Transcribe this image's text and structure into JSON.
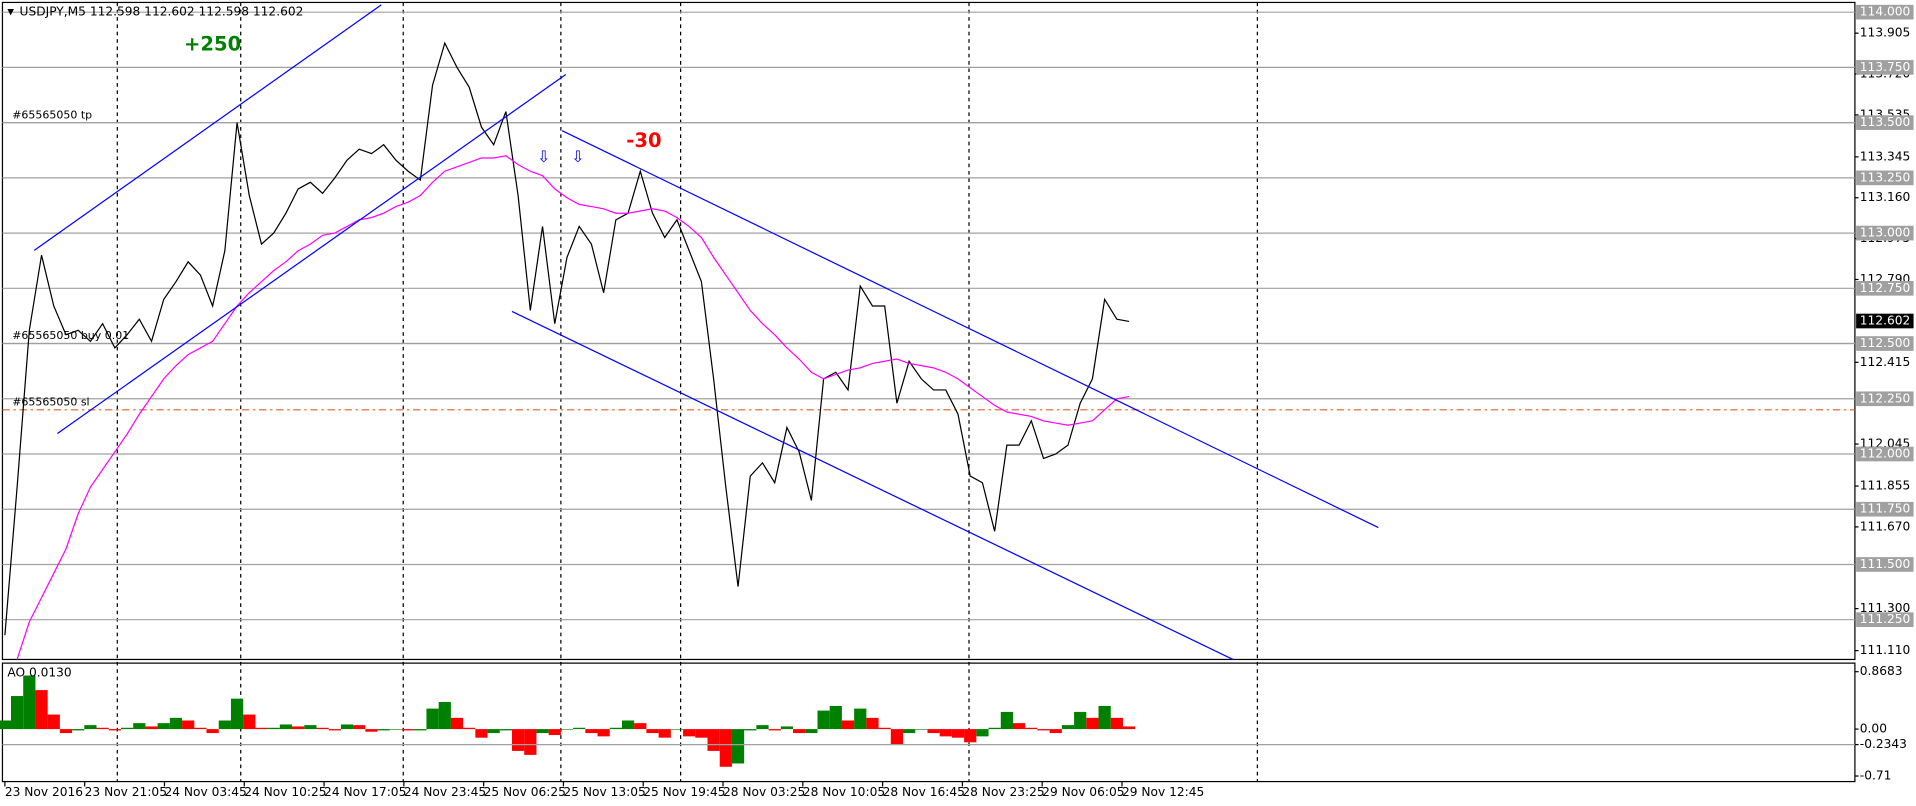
{
  "chart_data": [
    {
      "type": "line",
      "title": "USDJPY,M5  112.598 112.602 112.598 112.602",
      "x_labels": [
        "23 Nov 2016",
        "23 Nov 21:05",
        "24 Nov 03:45",
        "24 Nov 10:25",
        "24 Nov 17:05",
        "24 Nov 23:45",
        "25 Nov 06:25",
        "25 Nov 13:05",
        "25 Nov 19:45",
        "28 Nov 03:25",
        "28 Nov 10:05",
        "28 Nov 16:45",
        "28 Nov 23:25",
        "29 Nov 06:05",
        "29 Nov 12:45"
      ],
      "series": [
        {
          "color": "#000000",
          "values": [
            111.18,
            111.85,
            112.56,
            112.9,
            112.67,
            112.54,
            112.56,
            112.51,
            112.59,
            112.48,
            112.54,
            112.61,
            112.51,
            112.7,
            112.78,
            112.87,
            112.81,
            112.67,
            112.92,
            113.5,
            113.17,
            112.95,
            113.0,
            113.09,
            113.2,
            113.23,
            113.18,
            113.25,
            113.33,
            113.38,
            113.36,
            113.4,
            113.33,
            113.28,
            113.24,
            113.67,
            113.86,
            113.75,
            113.66,
            113.48,
            113.4,
            113.55,
            113.17,
            112.65,
            113.03,
            112.59,
            112.89,
            113.03,
            112.95,
            112.73,
            113.06,
            113.09,
            113.28,
            113.09,
            112.98,
            113.06,
            112.92,
            112.78,
            112.34,
            111.85,
            111.4,
            111.9,
            111.96,
            111.87,
            112.12,
            112.01,
            111.79,
            112.34,
            112.37,
            112.29,
            112.76,
            112.67,
            112.67,
            112.23,
            112.42,
            112.34,
            112.29,
            112.29,
            112.18,
            111.9,
            111.87,
            111.65,
            112.04,
            112.04,
            112.15,
            111.98,
            112.0,
            112.04,
            112.23,
            112.34,
            112.7,
            112.61,
            112.6
          ]
        },
        {
          "color": "#ff00ff",
          "values": [
            null,
            111.07,
            111.24,
            111.35,
            111.46,
            111.57,
            111.73,
            111.85,
            111.93,
            112.01,
            112.09,
            112.18,
            112.26,
            112.34,
            112.4,
            112.45,
            112.48,
            112.51,
            112.59,
            112.67,
            112.73,
            112.78,
            112.83,
            112.87,
            112.92,
            112.95,
            112.99,
            113.0,
            113.03,
            113.06,
            113.07,
            113.09,
            113.12,
            113.14,
            113.17,
            113.23,
            113.28,
            113.3,
            113.32,
            113.34,
            113.34,
            113.35,
            113.31,
            113.28,
            113.26,
            113.2,
            113.16,
            113.13,
            113.12,
            113.11,
            113.09,
            113.09,
            113.1,
            113.11,
            113.1,
            113.07,
            113.03,
            112.98,
            112.89,
            112.81,
            112.73,
            112.65,
            112.59,
            112.54,
            112.48,
            112.43,
            112.37,
            112.34,
            112.36,
            112.38,
            112.39,
            112.41,
            112.42,
            112.43,
            112.41,
            112.4,
            112.39,
            112.37,
            112.34,
            112.3,
            112.26,
            112.22,
            112.19,
            112.18,
            112.17,
            112.15,
            112.14,
            112.13,
            112.14,
            112.15,
            112.2,
            112.25,
            112.26
          ]
        }
      ],
      "ylim": [
        111.07,
        114.033
      ],
      "yticks": [
        113.905,
        {
          "value": 113.72,
          "label": "113.720"
        },
        113.535,
        113.345,
        {
          "value": 113.16,
          "label": "113.160"
        },
        112.975,
        {
          "value": 112.79,
          "label": "112.790"
        },
        112.415,
        112.045,
        111.855,
        {
          "value": 111.67,
          "label": "111.670"
        },
        {
          "value": 111.3,
          "label": "111.300"
        },
        {
          "value": 111.11,
          "label": "111.110"
        }
      ],
      "levels": [
        {
          "value": 114,
          "label": "114.000"
        },
        {
          "value": 113.75,
          "label": "113.750"
        },
        {
          "value": 113.5,
          "label": "113.500"
        },
        {
          "value": 113.25,
          "label": "113.250"
        },
        {
          "value": 113,
          "label": "113.000"
        },
        {
          "value": 112.75,
          "label": "112.750"
        },
        {
          "value": 112.5,
          "label": "112.500"
        },
        {
          "value": 112.25,
          "label": "112.250"
        },
        {
          "value": 112,
          "label": "112.000"
        },
        {
          "value": 111.75,
          "label": "111.750"
        },
        {
          "value": 111.5,
          "label": "111.500"
        },
        {
          "value": 111.25,
          "label": "111.250"
        }
      ],
      "current_price": 112.602,
      "orders": [
        {
          "value": 113.5,
          "label": "#65565050 tp"
        },
        {
          "value": 112.5,
          "label": "#65565050 buy 0.01"
        },
        {
          "value": 112.2,
          "label": "#65565050 sl"
        }
      ],
      "annotations": [
        "+250",
        "-30"
      ]
    },
    {
      "type": "bar",
      "title": "AO 0.0130",
      "up_color": "#008000",
      "down_color": "#ff0000",
      "values": [
        0.13,
        0.5,
        0.81,
        0.59,
        0.22,
        -0.06,
        -0.02,
        0.06,
        0.02,
        -0.02,
        0.02,
        0.09,
        0.04,
        0.09,
        0.17,
        0.13,
        0.02,
        -0.06,
        0.13,
        0.46,
        0.22,
        0.02,
        0.02,
        0.07,
        0.04,
        0.06,
        0.02,
        -0.02,
        0.07,
        0.06,
        -0.04,
        -0.02,
        0,
        -0.02,
        -0.02,
        0.31,
        0.41,
        0.17,
        0.02,
        -0.13,
        -0.06,
        -0.02,
        -0.33,
        -0.39,
        -0.06,
        -0.09,
        0,
        0.02,
        -0.06,
        -0.11,
        0.02,
        0.13,
        0.09,
        -0.06,
        -0.13,
        0,
        -0.11,
        -0.13,
        -0.33,
        -0.57,
        -0.52,
        -0.02,
        0.06,
        -0.02,
        0.04,
        -0.06,
        -0.06,
        0.28,
        0.35,
        0.13,
        0.31,
        0.17,
        0.02,
        -0.24,
        -0.06,
        0,
        -0.06,
        -0.11,
        -0.13,
        -0.2,
        -0.11,
        0.02,
        0.26,
        0.09,
        0.02,
        -0.02,
        -0.06,
        0.06,
        0.26,
        0.17,
        0.35,
        0.17,
        0.04
      ],
      "ylim": [
        -0.794,
        0.998
      ],
      "yticks": [
        0.8683,
        {
          "value": 0,
          "label": "0.00"
        },
        -0.2343,
        -0.71
      ]
    }
  ]
}
